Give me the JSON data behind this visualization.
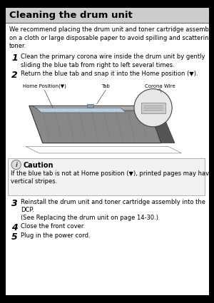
{
  "bg_color": "#ffffff",
  "page_bg": "#000000",
  "title": "Cleaning the drum unit",
  "title_bg": "#cccccc",
  "intro": "We recommend placing the drum unit and toner cartridge assembly\non a cloth or large disposable paper to avoid spilling and scattering\ntoner.",
  "step1_num": "1",
  "step1_text": "Clean the primary corona wire inside the drum unit by gently\nsliding the blue tab from right to left several times.",
  "step2_num": "2",
  "step2_text": "Return the blue tab and snap it into the Home position (▼).",
  "diag_label_home": "Home Position(▼)",
  "diag_label_tab": "Tab",
  "diag_label_corona": "Corona Wire",
  "caution_label": "Caution",
  "caution_text": "If the blue tab is not at Home position (▼), printed pages may have\nvertical stripes.",
  "step3_num": "3",
  "step3_text": "Reinstall the drum unit and toner cartridge assembly into the\nDCP.\n(See Replacing the drum unit on page 14-30.)",
  "step4_num": "4",
  "step4_text": "Close the front cover.",
  "step5_num": "5",
  "step5_text": "Plug in the power cord.",
  "font_size_body": 6.0,
  "font_size_step_num": 9.0,
  "font_size_title": 9.5,
  "font_size_diag": 5.0,
  "font_size_caution_label": 7.0
}
